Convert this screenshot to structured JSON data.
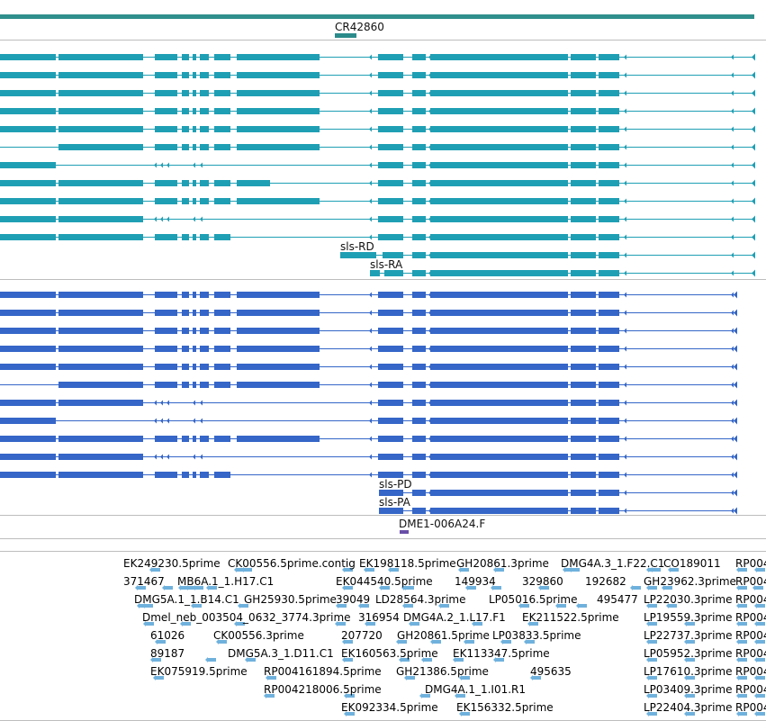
{
  "colors": {
    "genome_bar": "#2f8f8c",
    "ncrna": "#2b8a8a",
    "transcript_teal": "#1f9fb4",
    "transcript_blue": "#3566c8",
    "protein_purple": "#6a4fa8",
    "est": "#6fb1dd",
    "separator": "#bdbdbd"
  },
  "tracks": {
    "noncoding": {
      "label": "CR42860"
    },
    "transcripts": {
      "labels": [
        "sls-RD",
        "sls-RA"
      ]
    },
    "proteins": {
      "labels": [
        "sls-PD",
        "sls-PA"
      ]
    },
    "protein_match": {
      "label": "DME1-006A24.F"
    }
  },
  "est_labels": [
    "EK249230.5prime",
    "CK00556.5prime.contig",
    "EK198118.5prime",
    "GH20861.3prime",
    "DMG4A.3_1.F22.C1",
    "CO189011",
    "RP004",
    "371467",
    "MB6A.1_1.H17.C1",
    "EK044540.5prime",
    "149934",
    "329860",
    "192682",
    "GH23962.3prime",
    "RP004",
    "DMG5A.1_1.B14.C1",
    "GH25930.5prime",
    "39049",
    "LD28564.3prime",
    "LP05016.5prime",
    "495477",
    "LP22030.3prime",
    "RP004",
    "Dmel_neb_003504_0632_3774.3prime",
    "316954",
    "DMG4A.2_1.L17.F1",
    "EK211522.5prime",
    "LP19559.3prime",
    "RP004",
    "61026",
    "CK00556.3prime",
    "207720",
    "GH20861.5prime",
    "LP03833.5prime",
    "LP22737.3prime",
    "RP004",
    "89187",
    "DMG5A.3_1.D11.C1",
    "EK160563.5prime",
    "EK113347.5prime",
    "LP05952.3prime",
    "RP004",
    "EK075919.5prime",
    "RP004161894.5prime",
    "GH21386.5prime",
    "495635",
    "LP17610.3prime",
    "RP004",
    "RP004218006.5prime",
    "DMG4A.1_1.I01.R1",
    "LP03409.3prime",
    "RP004",
    "EK092334.5prime",
    "EK156332.5prime",
    "LP22404.3prime",
    "RP004"
  ]
}
